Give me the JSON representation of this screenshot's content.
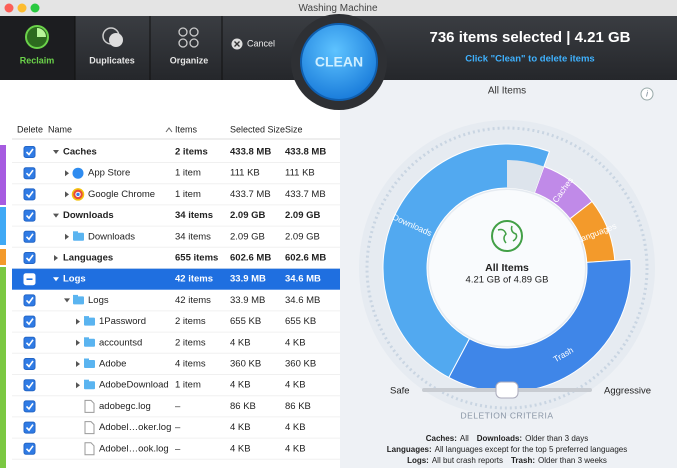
{
  "window": {
    "title": "Washing Machine"
  },
  "toolbar": {
    "tabs": [
      "Reclaim",
      "Duplicates",
      "Organize"
    ],
    "cancel": "Cancel",
    "clean": "CLEAN",
    "selection": "736 items selected | 4.21 GB",
    "hint": "Click \"Clean\" to delete items"
  },
  "table": {
    "columns": [
      "Delete",
      "Name",
      "Items",
      "Selected Size",
      "Size"
    ],
    "rows": [
      [
        "Caches",
        "2 items",
        "433.8 MB",
        "433.8 MB"
      ],
      [
        "App Store",
        "1 item",
        "111 KB",
        "111 KB"
      ],
      [
        "Google Chrome",
        "1 item",
        "433.7 MB",
        "433.7 MB"
      ],
      [
        "Downloads",
        "34 items",
        "2.09 GB",
        "2.09 GB"
      ],
      [
        "Downloads",
        "34 items",
        "2.09 GB",
        "2.09 GB"
      ],
      [
        "Languages",
        "655 items",
        "602.6 MB",
        "602.6 MB"
      ],
      [
        "Logs",
        "42 items",
        "33.9 MB",
        "34.6 MB"
      ],
      [
        "Logs",
        "42 items",
        "33.9 MB",
        "34.6 MB"
      ],
      [
        "1Password",
        "2 items",
        "655 KB",
        "655 KB"
      ],
      [
        "accountsd",
        "2 items",
        "4 KB",
        "4 KB"
      ],
      [
        "Adobe",
        "4 items",
        "360 KB",
        "360 KB"
      ],
      [
        "AdobeDownload",
        "1 item",
        "4 KB",
        "4 KB"
      ],
      [
        "adobegc.log",
        "–",
        "86 KB",
        "86 KB"
      ],
      [
        "Adobel…oker.log",
        "–",
        "4 KB",
        "4 KB"
      ],
      [
        "Adobel…ook.log",
        "–",
        "4 KB",
        "4 KB"
      ]
    ]
  },
  "chart": {
    "title": "All Items",
    "segments": [
      "Caches",
      "Languages",
      "Trash",
      "Downloads"
    ],
    "center_title": "All Items",
    "center_subtitle": "4.21 GB of 4.89 GB"
  },
  "slider": {
    "left": "Safe",
    "right": "Aggressive",
    "caption": "DELETION CRITERIA"
  },
  "criteria": [
    [
      "Caches:",
      "All"
    ],
    [
      "Downloads:",
      "Older than 3 days"
    ],
    [
      "Languages:",
      "All languages except for the top 5 preferred languages"
    ],
    [
      "Logs:",
      "All but crash reports"
    ],
    [
      "Trash:",
      "Older than 3 weeks"
    ]
  ]
}
